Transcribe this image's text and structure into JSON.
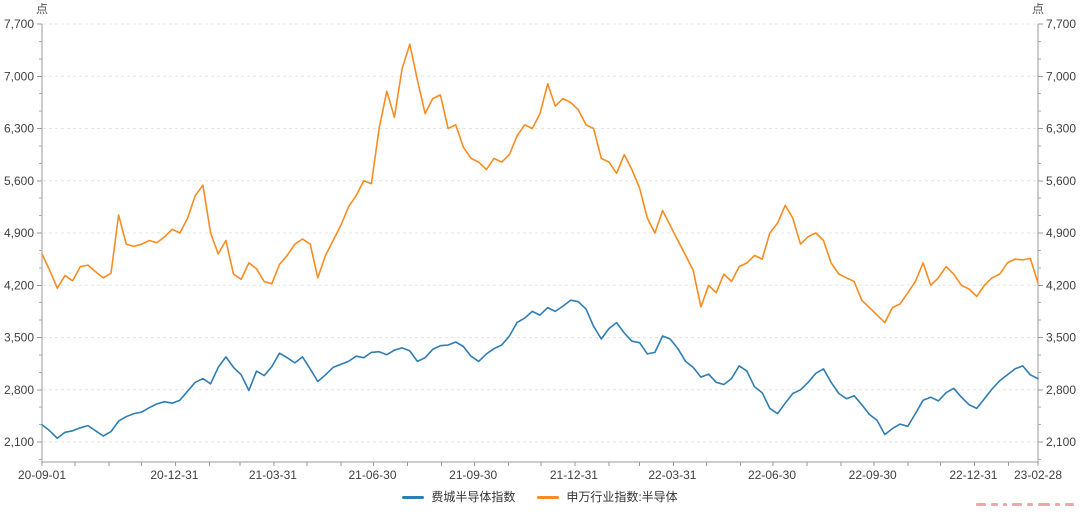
{
  "legend": [
    {
      "label": "费城半导体指数",
      "color": "#2e7eb3"
    },
    {
      "label": "申万行业指数:半导体",
      "color": "#f98c20"
    }
  ],
  "watermark": {
    "color": "#e06060"
  },
  "chart_data": {
    "type": "line",
    "title": "",
    "y_unit": "点",
    "ylim": [
      1867,
      7700
    ],
    "y_ticks": [
      7700,
      7000,
      6300,
      5600,
      4900,
      4200,
      3500,
      2800,
      2100
    ],
    "y_tick_labels": [
      "7,700",
      "7,000",
      "6,300",
      "5,600",
      "4,900",
      "4,200",
      "3,500",
      "2,800",
      "2,100"
    ],
    "x_range": [
      "2020-09-01",
      "2023-02-28"
    ],
    "x_tick_labels": [
      "20-09-01",
      "20-12-31",
      "21-03-31",
      "21-06-30",
      "21-09-30",
      "21-12-31",
      "22-03-31",
      "22-06-30",
      "22-09-30",
      "22-12-31",
      "23-02-28"
    ],
    "grid": "horizontal-dashed",
    "legend_position": "bottom-center",
    "sampling": "weekly",
    "series": [
      {
        "name": "费城半导体指数",
        "color": "#2e7eb3",
        "values": [
          2330,
          2250,
          2150,
          2230,
          2250,
          2290,
          2320,
          2250,
          2180,
          2240,
          2380,
          2440,
          2480,
          2500,
          2560,
          2610,
          2640,
          2620,
          2660,
          2780,
          2900,
          2950,
          2880,
          3100,
          3240,
          3100,
          3000,
          2790,
          3050,
          2990,
          3110,
          3290,
          3230,
          3160,
          3240,
          3080,
          2910,
          3000,
          3100,
          3140,
          3180,
          3250,
          3230,
          3300,
          3310,
          3270,
          3330,
          3360,
          3320,
          3180,
          3230,
          3340,
          3390,
          3400,
          3440,
          3380,
          3250,
          3180,
          3280,
          3350,
          3400,
          3520,
          3700,
          3760,
          3850,
          3800,
          3900,
          3850,
          3920,
          4000,
          3980,
          3880,
          3650,
          3480,
          3620,
          3700,
          3560,
          3450,
          3430,
          3280,
          3300,
          3520,
          3480,
          3350,
          3180,
          3100,
          2970,
          3010,
          2900,
          2870,
          2950,
          3120,
          3050,
          2840,
          2760,
          2550,
          2480,
          2620,
          2750,
          2800,
          2900,
          3020,
          3080,
          2900,
          2750,
          2680,
          2720,
          2600,
          2470,
          2390,
          2200,
          2280,
          2340,
          2310,
          2480,
          2660,
          2700,
          2650,
          2760,
          2820,
          2700,
          2600,
          2550,
          2680,
          2810,
          2920,
          3000,
          3080,
          3120,
          3000,
          2950
        ]
      },
      {
        "name": "申万行业指数:半导体",
        "color": "#f98c20",
        "values": [
          4620,
          4400,
          4160,
          4330,
          4260,
          4450,
          4470,
          4380,
          4300,
          4360,
          5140,
          4750,
          4720,
          4750,
          4800,
          4770,
          4850,
          4950,
          4900,
          5100,
          5400,
          5540,
          4900,
          4620,
          4800,
          4350,
          4280,
          4500,
          4420,
          4250,
          4220,
          4480,
          4600,
          4750,
          4820,
          4750,
          4300,
          4600,
          4800,
          5000,
          5250,
          5400,
          5600,
          5560,
          6300,
          6800,
          6450,
          7100,
          7430,
          6950,
          6500,
          6700,
          6750,
          6300,
          6350,
          6050,
          5900,
          5850,
          5750,
          5900,
          5850,
          5950,
          6200,
          6350,
          6300,
          6500,
          6900,
          6600,
          6700,
          6650,
          6550,
          6350,
          6300,
          5900,
          5850,
          5700,
          5950,
          5750,
          5500,
          5100,
          4900,
          5200,
          5000,
          4800,
          4600,
          4400,
          3910,
          4200,
          4100,
          4350,
          4250,
          4450,
          4500,
          4600,
          4550,
          4900,
          5030,
          5270,
          5100,
          4750,
          4850,
          4900,
          4800,
          4500,
          4350,
          4300,
          4250,
          4000,
          3900,
          3800,
          3700,
          3900,
          3950,
          4100,
          4250,
          4500,
          4200,
          4300,
          4450,
          4350,
          4200,
          4150,
          4050,
          4200,
          4300,
          4350,
          4500,
          4550,
          4540,
          4560,
          4230
        ]
      }
    ]
  }
}
